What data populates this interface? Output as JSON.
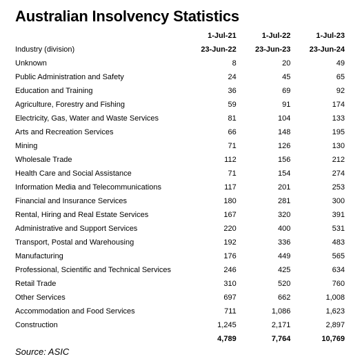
{
  "title": "Australian Insolvency Statistics",
  "table": {
    "industry_header": "Industry (division)",
    "periods": [
      {
        "start": "1-Jul-21",
        "end": "23-Jun-22"
      },
      {
        "start": "1-Jul-22",
        "end": "23-Jun-23"
      },
      {
        "start": "1-Jul-23",
        "end": "23-Jun-24"
      }
    ],
    "rows": [
      {
        "industry": "Unknown",
        "values": [
          "8",
          "20",
          "49"
        ]
      },
      {
        "industry": "Public Administration and Safety",
        "values": [
          "24",
          "45",
          "65"
        ]
      },
      {
        "industry": "Education and Training",
        "values": [
          "36",
          "69",
          "92"
        ]
      },
      {
        "industry": "Agriculture, Forestry and Fishing",
        "values": [
          "59",
          "91",
          "174"
        ]
      },
      {
        "industry": "Electricity, Gas, Water and Waste Services",
        "values": [
          "81",
          "104",
          "133"
        ]
      },
      {
        "industry": "Arts and Recreation Services",
        "values": [
          "66",
          "148",
          "195"
        ]
      },
      {
        "industry": "Mining",
        "values": [
          "71",
          "126",
          "130"
        ]
      },
      {
        "industry": "Wholesale Trade",
        "values": [
          "112",
          "156",
          "212"
        ]
      },
      {
        "industry": "Health Care and Social Assistance",
        "values": [
          "71",
          "154",
          "274"
        ]
      },
      {
        "industry": "Information Media and Telecommunications",
        "values": [
          "117",
          "201",
          "253"
        ]
      },
      {
        "industry": "Financial and Insurance Services",
        "values": [
          "180",
          "281",
          "300"
        ]
      },
      {
        "industry": "Rental, Hiring and Real Estate Services",
        "values": [
          "167",
          "320",
          "391"
        ]
      },
      {
        "industry": "Administrative and Support Services",
        "values": [
          "220",
          "400",
          "531"
        ]
      },
      {
        "industry": "Transport, Postal and Warehousing",
        "values": [
          "192",
          "336",
          "483"
        ]
      },
      {
        "industry": "Manufacturing",
        "values": [
          "176",
          "449",
          "565"
        ]
      },
      {
        "industry": "Professional, Scientific and Technical Services",
        "values": [
          "246",
          "425",
          "634"
        ]
      },
      {
        "industry": "Retail Trade",
        "values": [
          "310",
          "520",
          "760"
        ]
      },
      {
        "industry": "Other Services",
        "values": [
          "697",
          "662",
          "1,008"
        ]
      },
      {
        "industry": "Accommodation and Food Services",
        "values": [
          "711",
          "1,086",
          "1,623"
        ]
      },
      {
        "industry": "Construction",
        "values": [
          "1,245",
          "2,171",
          "2,897"
        ]
      }
    ],
    "totals": [
      "4,789",
      "7,764",
      "10,769"
    ]
  },
  "source": "Source: ASIC"
}
